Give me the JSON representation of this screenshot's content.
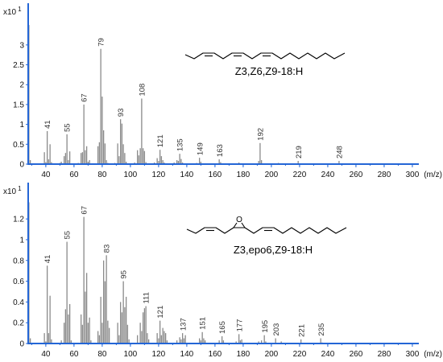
{
  "colors": {
    "axis": "#2466d6",
    "peaks": "#8a8a8a",
    "text": "#111111"
  },
  "chart_data": [
    {
      "type": "bar",
      "y_scale_label": "x10",
      "y_scale_exponent": "1",
      "xlabel": "(m/z)",
      "xlim": [
        27.5,
        304.6
      ],
      "ylim": [
        0,
        4.05
      ],
      "grid": false,
      "xticks": [
        40,
        60,
        80,
        100,
        120,
        140,
        160,
        180,
        200,
        220,
        240,
        260,
        280,
        300
      ],
      "yticks": [
        0,
        0.5,
        1,
        1.5,
        2,
        2.5,
        3
      ],
      "peaks": [
        [
          28,
          3.5
        ],
        [
          29,
          0.1
        ],
        [
          39,
          0.3
        ],
        [
          40,
          0.05
        ],
        [
          41,
          0.83
        ],
        [
          42,
          0.12
        ],
        [
          43,
          0.5
        ],
        [
          44,
          0.05
        ],
        [
          50,
          0.03
        ],
        [
          51,
          0.06
        ],
        [
          53,
          0.2
        ],
        [
          54,
          0.28
        ],
        [
          55,
          0.75
        ],
        [
          56,
          0.1
        ],
        [
          57,
          0.32
        ],
        [
          58,
          0.02
        ],
        [
          63,
          0.03
        ],
        [
          65,
          0.28
        ],
        [
          66,
          0.3
        ],
        [
          67,
          1.5
        ],
        [
          68,
          0.35
        ],
        [
          69,
          0.45
        ],
        [
          70,
          0.06
        ],
        [
          71,
          0.1
        ],
        [
          74,
          0.02
        ],
        [
          77,
          0.45
        ],
        [
          78,
          0.55
        ],
        [
          79,
          2.9
        ],
        [
          80,
          1.7
        ],
        [
          81,
          0.85
        ],
        [
          82,
          0.52
        ],
        [
          83,
          0.1
        ],
        [
          84,
          0.03
        ],
        [
          89,
          0.03
        ],
        [
          91,
          0.52
        ],
        [
          92,
          0.2
        ],
        [
          93,
          1.13
        ],
        [
          94,
          1.02
        ],
        [
          95,
          0.5
        ],
        [
          96,
          0.28
        ],
        [
          97,
          0.06
        ],
        [
          103,
          0.04
        ],
        [
          105,
          0.35
        ],
        [
          106,
          0.22
        ],
        [
          107,
          0.4
        ],
        [
          108,
          1.65
        ],
        [
          109,
          0.4
        ],
        [
          110,
          0.33
        ],
        [
          111,
          0.05
        ],
        [
          117,
          0.04
        ],
        [
          119,
          0.15
        ],
        [
          120,
          0.08
        ],
        [
          121,
          0.36
        ],
        [
          122,
          0.2
        ],
        [
          123,
          0.1
        ],
        [
          124,
          0.04
        ],
        [
          131,
          0.04
        ],
        [
          133,
          0.1
        ],
        [
          134,
          0.08
        ],
        [
          135,
          0.26
        ],
        [
          136,
          0.13
        ],
        [
          137,
          0.04
        ],
        [
          145,
          0.02
        ],
        [
          147,
          0.03
        ],
        [
          149,
          0.16
        ],
        [
          150,
          0.06
        ],
        [
          161,
          0.02
        ],
        [
          163,
          0.12
        ],
        [
          164,
          0.05
        ],
        [
          177,
          0.04
        ],
        [
          178,
          0.02
        ],
        [
          187,
          0.02
        ],
        [
          191,
          0.08
        ],
        [
          192,
          0.53
        ],
        [
          193,
          0.1
        ],
        [
          205,
          0.03
        ],
        [
          206,
          0.02
        ],
        [
          219,
          0.08
        ],
        [
          220,
          0.02
        ],
        [
          233,
          0.02
        ],
        [
          248,
          0.08
        ],
        [
          249,
          0.02
        ],
        [
          262,
          0.01
        ],
        [
          276,
          0.01
        ]
      ],
      "labeled_peaks": [
        41,
        55,
        67,
        79,
        93,
        108,
        121,
        135,
        149,
        163,
        192,
        219,
        248
      ],
      "annotation": {
        "label": "Z3,Z6,Z9-18:H"
      }
    },
    {
      "type": "bar",
      "y_scale_label": "x10",
      "y_scale_exponent": "1",
      "xlabel": "(m/z)",
      "xlim": [
        27.5,
        304.6
      ],
      "ylim": [
        0,
        1.55
      ],
      "grid": false,
      "xticks": [
        40,
        60,
        80,
        100,
        120,
        140,
        160,
        180,
        200,
        220,
        240,
        260,
        280,
        300
      ],
      "yticks": [
        0,
        0.2,
        0.4,
        0.6,
        0.8,
        1,
        1.2
      ],
      "peaks": [
        [
          28,
          1.36
        ],
        [
          29,
          0.05
        ],
        [
          39,
          0.1
        ],
        [
          40,
          0.02
        ],
        [
          41,
          0.75
        ],
        [
          42,
          0.1
        ],
        [
          43,
          0.46
        ],
        [
          44,
          0.04
        ],
        [
          51,
          0.03
        ],
        [
          53,
          0.2
        ],
        [
          54,
          0.33
        ],
        [
          55,
          0.98
        ],
        [
          56,
          0.28
        ],
        [
          57,
          0.38
        ],
        [
          58,
          0.03
        ],
        [
          65,
          0.28
        ],
        [
          66,
          0.18
        ],
        [
          67,
          1.22
        ],
        [
          68,
          0.5
        ],
        [
          69,
          0.68
        ],
        [
          70,
          0.2
        ],
        [
          71,
          0.25
        ],
        [
          72,
          0.03
        ],
        [
          77,
          0.12
        ],
        [
          78,
          0.08
        ],
        [
          79,
          0.45
        ],
        [
          80,
          0.2
        ],
        [
          81,
          0.8
        ],
        [
          82,
          0.6
        ],
        [
          83,
          0.85
        ],
        [
          84,
          0.22
        ],
        [
          85,
          0.15
        ],
        [
          91,
          0.2
        ],
        [
          92,
          0.08
        ],
        [
          93,
          0.4
        ],
        [
          94,
          0.3
        ],
        [
          95,
          0.6
        ],
        [
          96,
          0.35
        ],
        [
          97,
          0.45
        ],
        [
          98,
          0.18
        ],
        [
          99,
          0.04
        ],
        [
          105,
          0.08
        ],
        [
          107,
          0.2
        ],
        [
          108,
          0.12
        ],
        [
          109,
          0.3
        ],
        [
          110,
          0.34
        ],
        [
          111,
          0.36
        ],
        [
          112,
          0.1
        ],
        [
          113,
          0.04
        ],
        [
          119,
          0.1
        ],
        [
          120,
          0.05
        ],
        [
          121,
          0.22
        ],
        [
          122,
          0.08
        ],
        [
          123,
          0.15
        ],
        [
          124,
          0.12
        ],
        [
          125,
          0.1
        ],
        [
          126,
          0.03
        ],
        [
          133,
          0.03
        ],
        [
          135,
          0.06
        ],
        [
          136,
          0.04
        ],
        [
          137,
          0.1
        ],
        [
          138,
          0.05
        ],
        [
          139,
          0.08
        ],
        [
          149,
          0.05
        ],
        [
          150,
          0.03
        ],
        [
          151,
          0.11
        ],
        [
          152,
          0.05
        ],
        [
          153,
          0.03
        ],
        [
          163,
          0.03
        ],
        [
          165,
          0.07
        ],
        [
          166,
          0.03
        ],
        [
          175,
          0.02
        ],
        [
          177,
          0.09
        ],
        [
          178,
          0.03
        ],
        [
          179,
          0.04
        ],
        [
          191,
          0.02
        ],
        [
          193,
          0.03
        ],
        [
          195,
          0.08
        ],
        [
          196,
          0.02
        ],
        [
          203,
          0.05
        ],
        [
          207,
          0.02
        ],
        [
          221,
          0.04
        ],
        [
          235,
          0.05
        ],
        [
          236,
          0.01
        ]
      ],
      "labeled_peaks": [
        41,
        55,
        67,
        83,
        95,
        111,
        121,
        137,
        151,
        165,
        177,
        195,
        203,
        221,
        235
      ],
      "annotation": {
        "label": "Z3,epo6,Z9-18:H",
        "atom_label": "O"
      }
    }
  ]
}
